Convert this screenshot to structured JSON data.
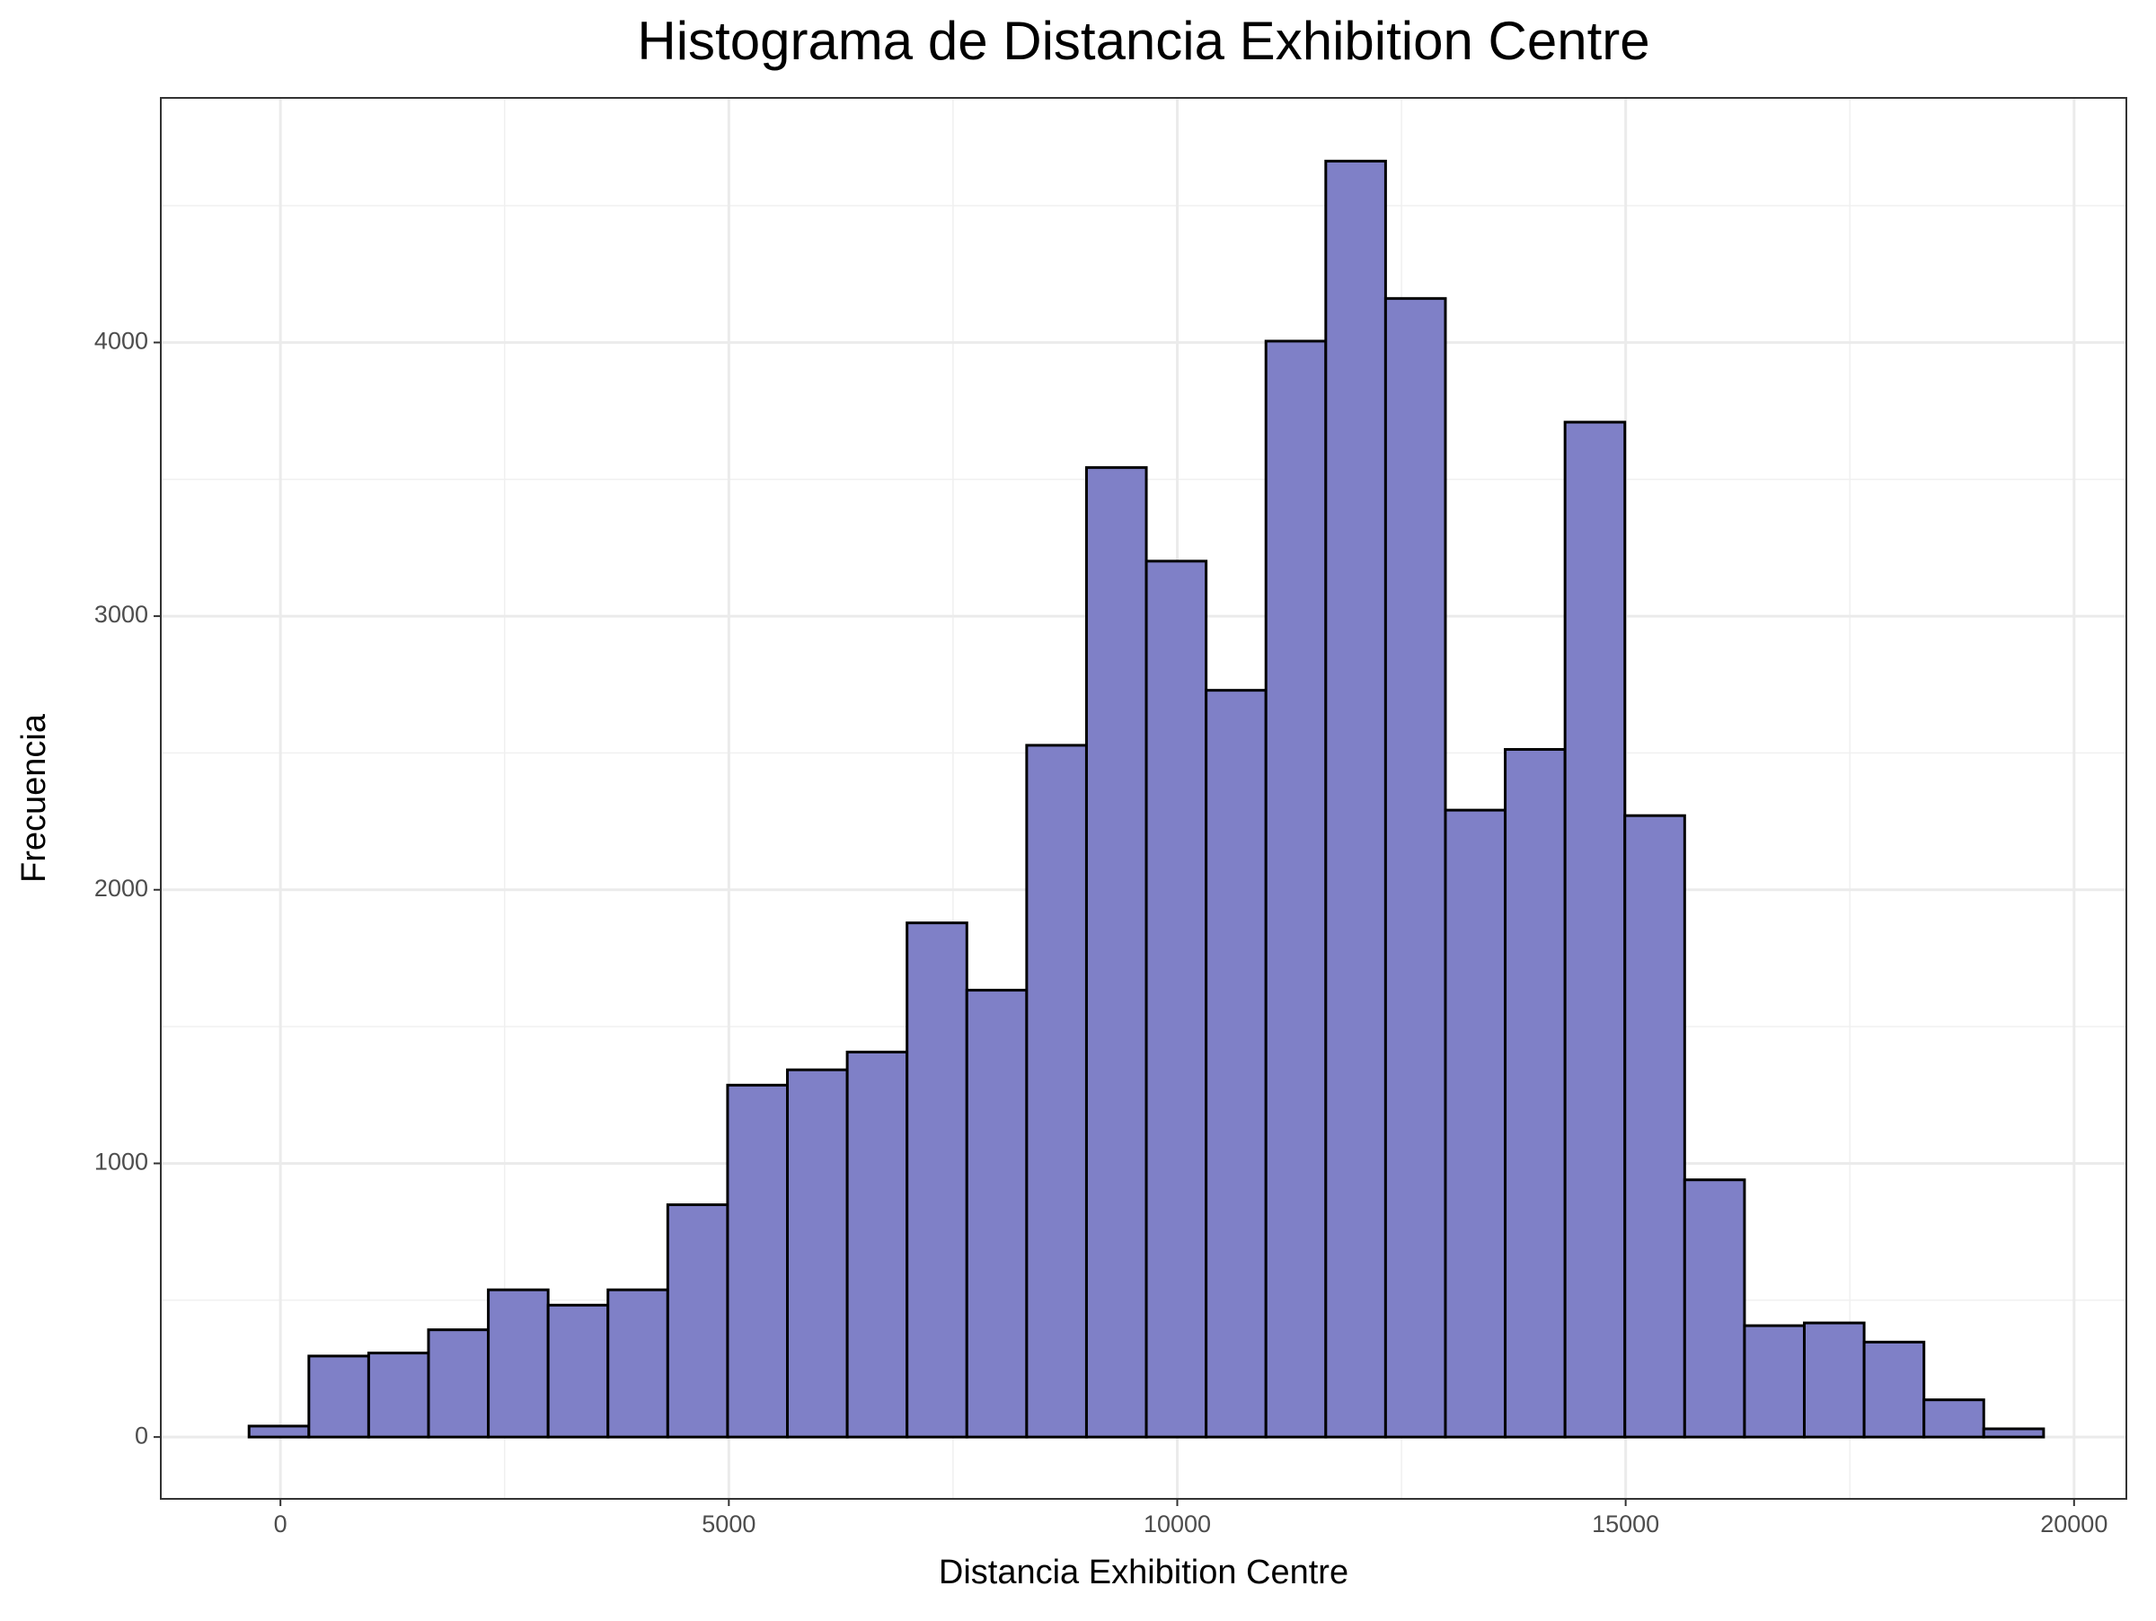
{
  "chart_data": {
    "type": "histogram",
    "title": "Histograma de Distancia Exhibition Centre",
    "x_label": "Distancia Exhibition Centre",
    "y_label": "Frecuencia",
    "bins": [
      -350,
      317,
      984,
      1651,
      2318,
      2985,
      3652,
      4319,
      4986,
      5653,
      6320,
      6987,
      7654,
      8321,
      8988,
      9655,
      10322,
      10989,
      11656,
      12323,
      12990,
      13657,
      14324,
      14991,
      15658,
      16325,
      16992,
      17659,
      18326,
      18993,
      19660
    ],
    "values": [
      40,
      296,
      307,
      392,
      538,
      482,
      538,
      849,
      1286,
      1342,
      1407,
      1879,
      1633,
      2528,
      3543,
      3201,
      2729,
      4005,
      4663,
      4161,
      2291,
      2513,
      3709,
      2271,
      940,
      407,
      417,
      347,
      136,
      30
    ],
    "color": "#7f80c7",
    "edge_color": "#000000",
    "xlim": [
      -1334,
      20583
    ],
    "ylim": [
      -226,
      4894
    ],
    "xticks": [
      0,
      5000,
      10000,
      15000,
      20000
    ],
    "yticks": [
      0,
      1000,
      2000,
      3000,
      4000
    ],
    "grid": true
  }
}
